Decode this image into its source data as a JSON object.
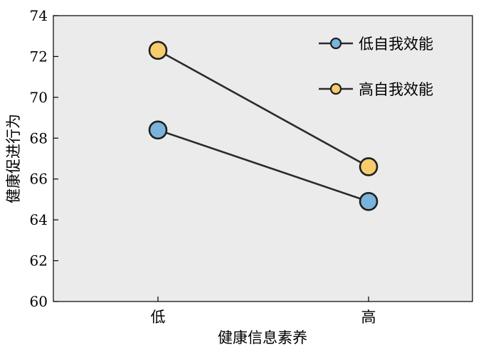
{
  "chart_data": {
    "type": "line",
    "xlabel": "健康信息素养",
    "ylabel": "健康促进行为",
    "categories": [
      "低",
      "高"
    ],
    "ylim": [
      60,
      74
    ],
    "yticks": [
      60,
      62,
      64,
      66,
      68,
      70,
      72,
      74
    ],
    "grid": false,
    "legend": "top-right",
    "series": [
      {
        "name": "低自我效能",
        "values": [
          68.4,
          64.9
        ],
        "color": "#7ab4dc"
      },
      {
        "name": "高自我效能",
        "values": [
          72.3,
          66.6
        ],
        "color": "#f6cc6c"
      }
    ]
  }
}
